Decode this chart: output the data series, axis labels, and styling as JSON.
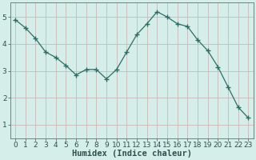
{
  "x": [
    0,
    1,
    2,
    3,
    4,
    5,
    6,
    7,
    8,
    9,
    10,
    11,
    12,
    13,
    14,
    15,
    16,
    17,
    18,
    19,
    20,
    21,
    22,
    23
  ],
  "y": [
    4.9,
    4.6,
    4.2,
    3.7,
    3.5,
    3.2,
    2.85,
    3.05,
    3.05,
    2.7,
    3.05,
    3.7,
    4.35,
    4.75,
    5.2,
    5.0,
    4.75,
    4.65,
    4.15,
    3.75,
    3.15,
    2.4,
    1.65,
    1.25
  ],
  "line_color": "#2d6e63",
  "marker": "+",
  "marker_size": 4,
  "marker_linewidth": 1.0,
  "bg_color": "#d5eeea",
  "grid_color": "#c8b8b8",
  "xlabel": "Humidex (Indice chaleur)",
  "xlim": [
    -0.5,
    23.5
  ],
  "ylim": [
    0.5,
    5.55
  ],
  "yticks": [
    1,
    2,
    3,
    4,
    5
  ],
  "xticks": [
    0,
    1,
    2,
    3,
    4,
    5,
    6,
    7,
    8,
    9,
    10,
    11,
    12,
    13,
    14,
    15,
    16,
    17,
    18,
    19,
    20,
    21,
    22,
    23
  ],
  "tick_fontsize": 6.5,
  "xlabel_fontsize": 7.5,
  "tick_color": "#2d5050",
  "spine_color": "#5a8a8a",
  "linewidth": 0.9
}
